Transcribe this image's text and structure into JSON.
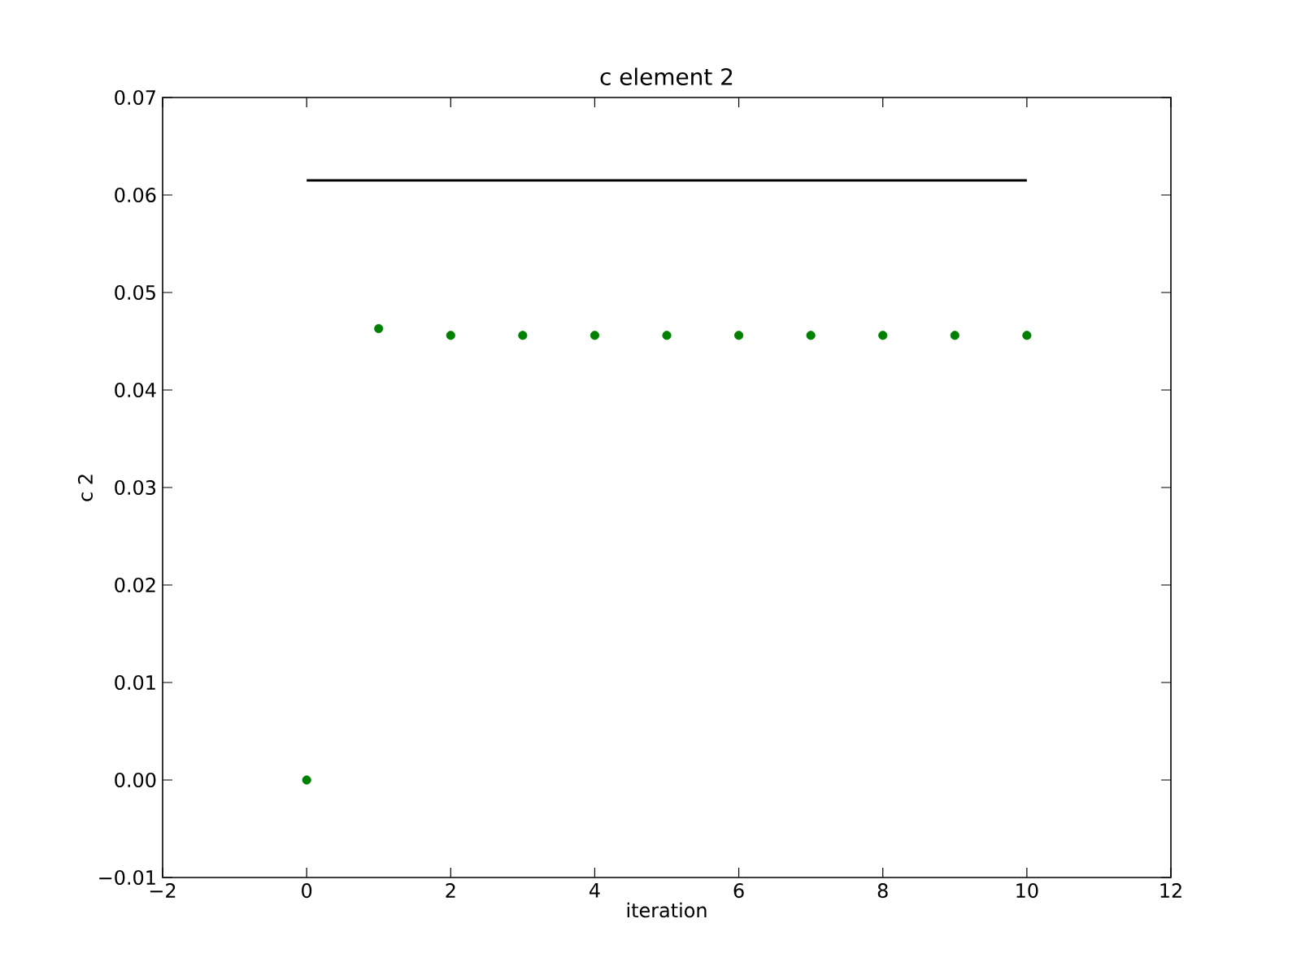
{
  "chart_data": {
    "type": "scatter",
    "title": "c element 2",
    "xlabel": "iteration",
    "ylabel": "c 2",
    "x": [
      0,
      1,
      2,
      3,
      4,
      5,
      6,
      7,
      8,
      9,
      10
    ],
    "series": [
      {
        "color": "#008000",
        "marker": "circle",
        "values": [
          0,
          0.0463,
          0.0456,
          0.0456,
          0.0456,
          0.0456,
          0.0456,
          0.0456,
          0.0456,
          0.0456,
          0.0456
        ]
      },
      {
        "type": "line",
        "color": "#000000",
        "x": [
          0,
          10
        ],
        "values": [
          0.0615,
          0.0615
        ]
      }
    ],
    "xlim": [
      -2,
      12
    ],
    "ylim": [
      -0.01,
      0.07
    ],
    "xticks": [
      {
        "value": -2,
        "label": "−2"
      },
      0,
      2,
      4,
      6,
      8,
      10,
      12
    ],
    "yticks": [
      {
        "value": -0.01,
        "label": "−0.01"
      },
      {
        "value": 0,
        "label": "0.00"
      },
      {
        "value": 0.01,
        "label": "0.01"
      },
      {
        "value": 0.02,
        "label": "0.02"
      },
      {
        "value": 0.03,
        "label": "0.03"
      },
      {
        "value": 0.04,
        "label": "0.04"
      },
      {
        "value": 0.05,
        "label": "0.05"
      },
      {
        "value": 0.06,
        "label": "0.06"
      },
      {
        "value": 0.07,
        "label": "0.07"
      }
    ]
  }
}
